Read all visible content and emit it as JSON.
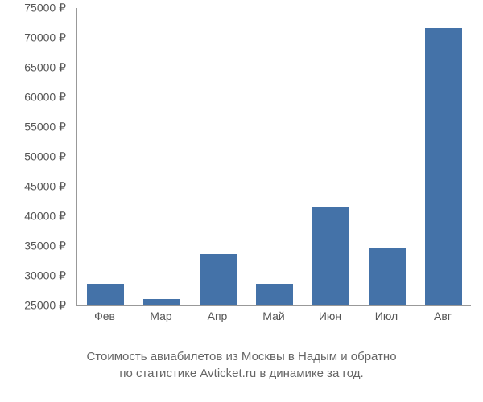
{
  "chart": {
    "type": "bar",
    "categories": [
      "Фев",
      "Мар",
      "Апр",
      "Май",
      "Июн",
      "Июл",
      "Авг"
    ],
    "values": [
      28500,
      26000,
      33500,
      28500,
      41500,
      34500,
      71500
    ],
    "bar_color": "#4472a8",
    "bar_width": 0.65,
    "ylim": [
      25000,
      75000
    ],
    "ytick_start": 25000,
    "ytick_end": 75000,
    "ytick_step": 5000,
    "y_suffix": " ₽",
    "background_color": "#ffffff",
    "axis_color": "#999999",
    "tick_fontsize": 14,
    "tick_color": "#555555",
    "caption_fontsize": 15,
    "caption_color": "#666666"
  },
  "caption_line1": "Стоимость авиабилетов из Москвы в Надым и обратно",
  "caption_line2": "по статистике Avticket.ru в динамике за год."
}
